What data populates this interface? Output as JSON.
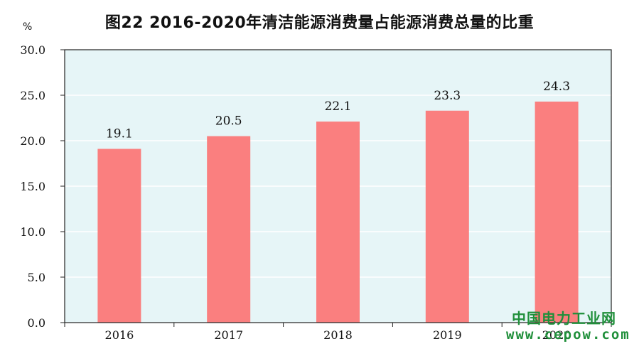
{
  "unit": "%",
  "watermark": {
    "line1": "中国电力工业网",
    "line2": "www.cepow.com"
  },
  "colors": {
    "plot_background": "#e6f5f7",
    "bar": "#fa7f7f",
    "grid": "#ffffff",
    "watermark": "#1f8f3a"
  },
  "chart_data": {
    "type": "bar",
    "title": "图22  2016-2020年清洁能源消费量占能源消费总量的比重",
    "xlabel": "",
    "ylabel": "%",
    "categories": [
      "2016",
      "2017",
      "2018",
      "2019",
      "2020"
    ],
    "values": [
      19.1,
      20.5,
      22.1,
      23.3,
      24.3
    ],
    "data_labels": [
      "19.1",
      "20.5",
      "22.1",
      "23.3",
      "24.3"
    ],
    "ylim": [
      0,
      30
    ],
    "yticks": [
      "0.0",
      "5.0",
      "10.0",
      "15.0",
      "20.0",
      "25.0",
      "30.0"
    ],
    "grid": true,
    "legend": "none"
  }
}
